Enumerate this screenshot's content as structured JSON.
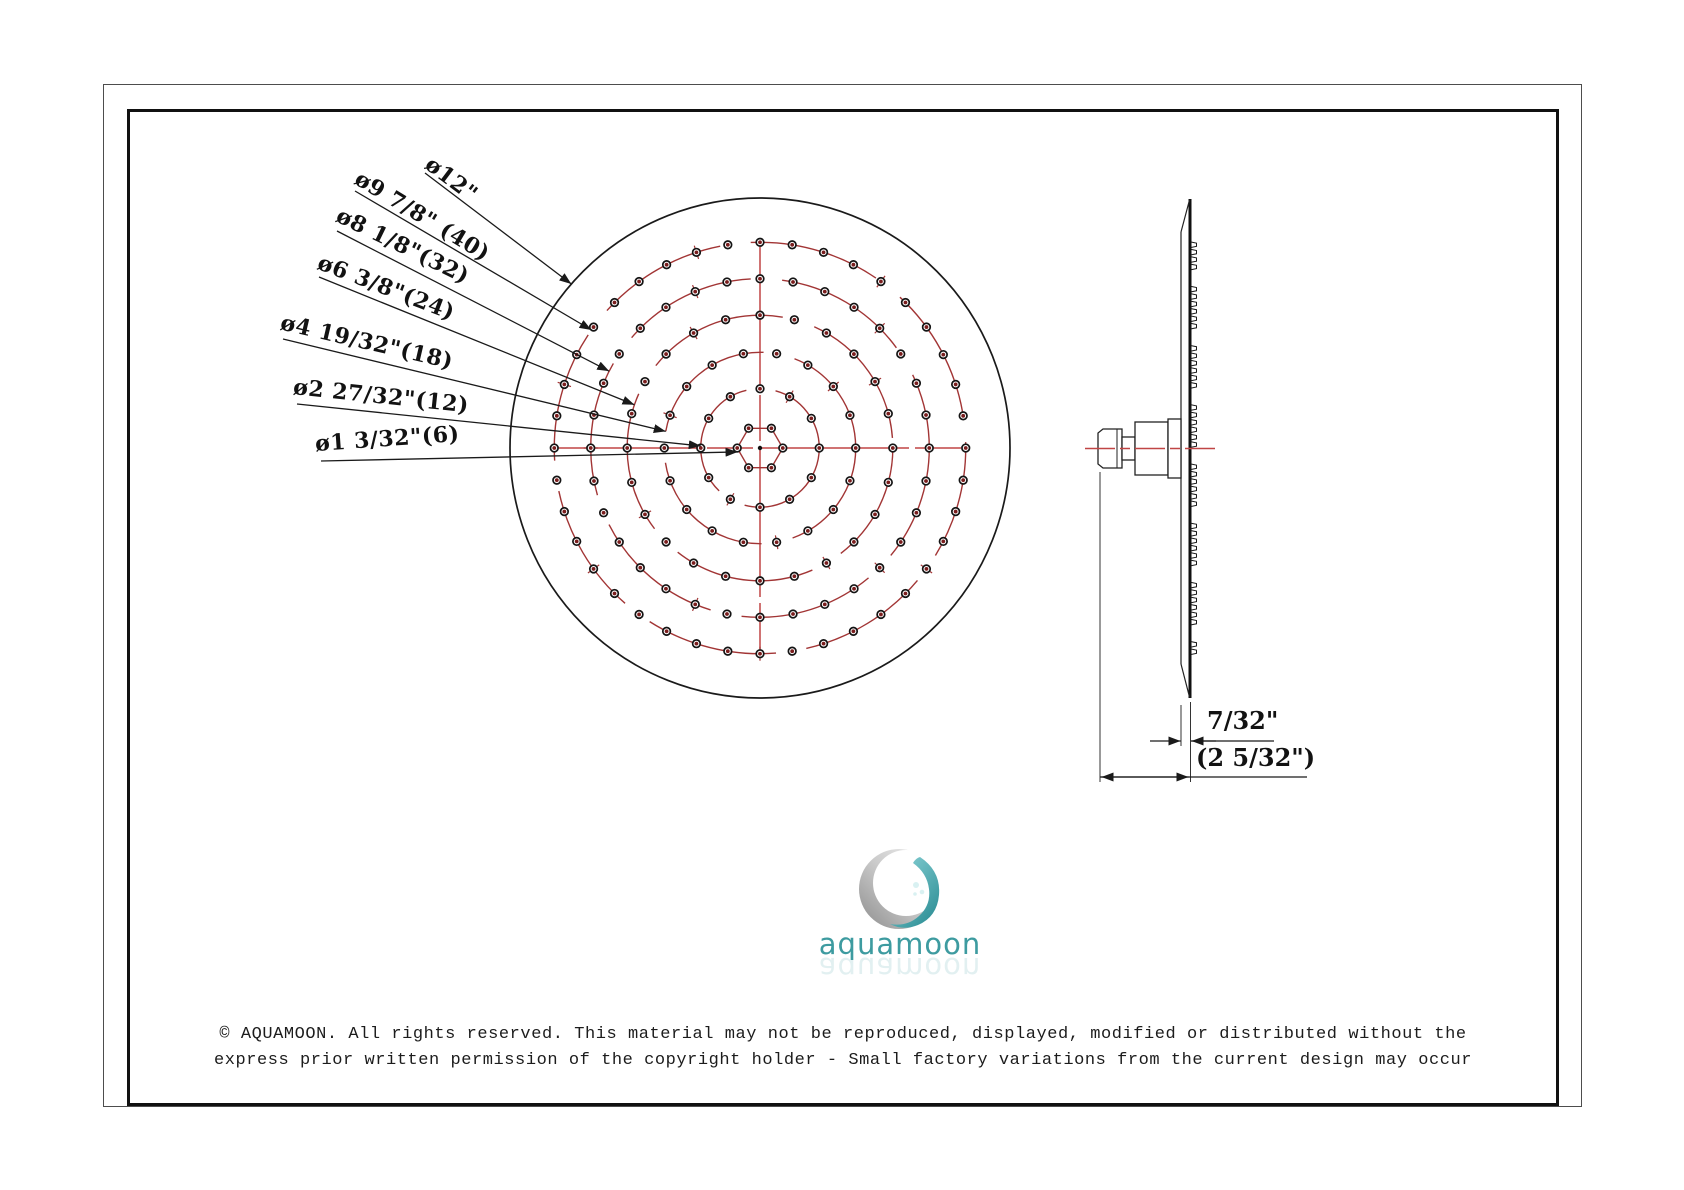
{
  "sheet": {
    "background": "#ffffff"
  },
  "front_view": {
    "outer_circle": {
      "label": "ø12\"",
      "diameter_in": 12
    },
    "rings": [
      {
        "diameter_in": 1.09375,
        "nozzle_count": 6,
        "diameter_label": "ø1 3/32\""
      },
      {
        "diameter_in": 2.84375,
        "nozzle_count": 12,
        "diameter_label": "ø2 27/32\""
      },
      {
        "diameter_in": 4.59375,
        "nozzle_count": 18,
        "diameter_label": "ø4 19/32\""
      },
      {
        "diameter_in": 6.375,
        "nozzle_count": 24,
        "diameter_label": "ø6 3/8\""
      },
      {
        "diameter_in": 8.125,
        "nozzle_count": 32,
        "diameter_label": "ø8 1/8\""
      },
      {
        "diameter_in": 9.875,
        "nozzle_count": 40,
        "diameter_label": "ø9 7/8\""
      }
    ],
    "callouts": [
      {
        "text": "ø12\""
      },
      {
        "text": "ø9 7/8\" (40)"
      },
      {
        "text": "ø8 1/8\"(32)"
      },
      {
        "text": "ø6 3/8\"(24)"
      },
      {
        "text": "ø4 19/32\"(18)"
      },
      {
        "text": "ø2 27/32\"(12)"
      },
      {
        "text": "ø1 3/32\"(6)"
      }
    ]
  },
  "side_view": {
    "thickness_label": "7/32\"",
    "depth_label": "(2 5/32\")"
  },
  "logo": {
    "brand": "aquamoon"
  },
  "footer": {
    "line1": "© AQUAMOON. All rights reserved. This material may not be reproduced, displayed, modified or distributed without the",
    "line2": "express prior written permission of the copyright holder - Small factory variations from the current design may occur"
  },
  "colors": {
    "line": "#1a1a1a",
    "arc_red": "#a23535",
    "centerline_red": "#c04545",
    "nozzle_core": "#7a1d1d",
    "logo_teal": "#3d9ba0",
    "moon_silver": "#9a9a9a"
  }
}
